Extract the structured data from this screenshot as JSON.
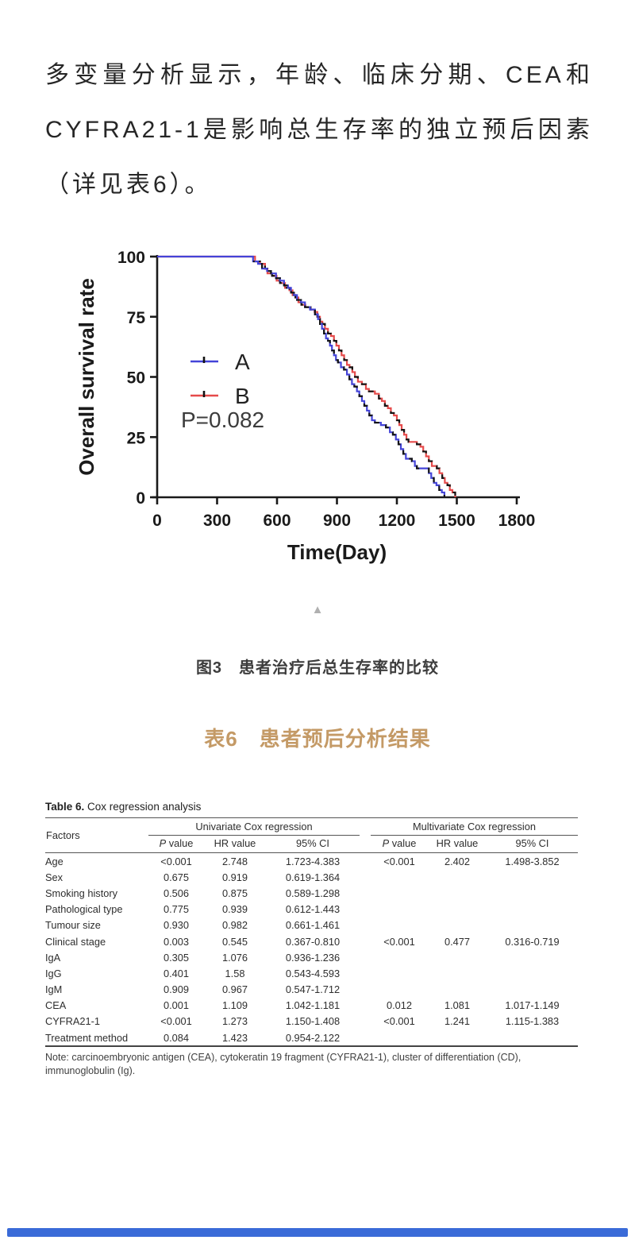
{
  "paragraph": {
    "text": "多变量分析显示，年龄、临床分期、CEA和CYFRA21-1是影响总生存率的独立预后因素（详见表6）。"
  },
  "chart_data": {
    "type": "line",
    "subtype": "kaplan-meier-step",
    "title": "",
    "xlabel": "Time(Day)",
    "ylabel": "Overall survival rate",
    "xlim": [
      0,
      1800
    ],
    "ylim": [
      0,
      100
    ],
    "x_ticks": [
      0,
      300,
      600,
      900,
      1200,
      1500,
      1800
    ],
    "y_ticks": [
      0,
      25,
      50,
      75,
      100
    ],
    "grid": "off",
    "legend_position": "inside-left",
    "annotation": "P=0.082",
    "legend": [
      {
        "label": "A",
        "color": "#4444d8"
      },
      {
        "label": "B",
        "color": "#e64b4b"
      }
    ],
    "series": [
      {
        "name": "B",
        "color": "#e64b4b",
        "points": [
          [
            0,
            100
          ],
          [
            490,
            98
          ],
          [
            515,
            97
          ],
          [
            540,
            95
          ],
          [
            552,
            93
          ],
          [
            575,
            92
          ],
          [
            598,
            90
          ],
          [
            615,
            89
          ],
          [
            640,
            87
          ],
          [
            662,
            86
          ],
          [
            678,
            84
          ],
          [
            692,
            83
          ],
          [
            707,
            81
          ],
          [
            722,
            80
          ],
          [
            742,
            79
          ],
          [
            768,
            78
          ],
          [
            788,
            77
          ],
          [
            802,
            75
          ],
          [
            815,
            73
          ],
          [
            827,
            72
          ],
          [
            840,
            70
          ],
          [
            855,
            68
          ],
          [
            870,
            67
          ],
          [
            885,
            65
          ],
          [
            897,
            63
          ],
          [
            910,
            61
          ],
          [
            923,
            59
          ],
          [
            936,
            57
          ],
          [
            950,
            55
          ],
          [
            963,
            54
          ],
          [
            977,
            52
          ],
          [
            990,
            50
          ],
          [
            1005,
            48
          ],
          [
            1025,
            47
          ],
          [
            1045,
            45
          ],
          [
            1060,
            44
          ],
          [
            1090,
            43
          ],
          [
            1110,
            41
          ],
          [
            1125,
            40
          ],
          [
            1140,
            38
          ],
          [
            1155,
            37
          ],
          [
            1170,
            35
          ],
          [
            1185,
            34
          ],
          [
            1200,
            32
          ],
          [
            1212,
            30
          ],
          [
            1224,
            28
          ],
          [
            1236,
            26
          ],
          [
            1248,
            24
          ],
          [
            1258,
            23
          ],
          [
            1300,
            22
          ],
          [
            1318,
            21
          ],
          [
            1332,
            19
          ],
          [
            1346,
            17
          ],
          [
            1360,
            15
          ],
          [
            1375,
            13
          ],
          [
            1400,
            12
          ],
          [
            1413,
            10
          ],
          [
            1427,
            8
          ],
          [
            1440,
            6
          ],
          [
            1453,
            5
          ],
          [
            1465,
            3
          ],
          [
            1478,
            2
          ],
          [
            1492,
            0
          ]
        ]
      },
      {
        "name": "A",
        "color": "#4444d8",
        "points": [
          [
            0,
            100
          ],
          [
            480,
            98
          ],
          [
            505,
            97
          ],
          [
            525,
            95
          ],
          [
            550,
            94
          ],
          [
            570,
            93
          ],
          [
            595,
            91
          ],
          [
            615,
            90
          ],
          [
            635,
            88
          ],
          [
            655,
            87
          ],
          [
            670,
            85
          ],
          [
            685,
            84
          ],
          [
            700,
            82
          ],
          [
            720,
            81
          ],
          [
            740,
            79
          ],
          [
            765,
            78
          ],
          [
            790,
            76
          ],
          [
            805,
            74
          ],
          [
            815,
            72
          ],
          [
            825,
            70
          ],
          [
            835,
            68
          ],
          [
            845,
            66
          ],
          [
            855,
            65
          ],
          [
            865,
            63
          ],
          [
            875,
            61
          ],
          [
            885,
            59
          ],
          [
            895,
            57
          ],
          [
            905,
            56
          ],
          [
            920,
            54
          ],
          [
            935,
            53
          ],
          [
            950,
            51
          ],
          [
            962,
            49
          ],
          [
            975,
            47
          ],
          [
            987,
            46
          ],
          [
            1000,
            44
          ],
          [
            1012,
            42
          ],
          [
            1025,
            40
          ],
          [
            1037,
            38
          ],
          [
            1050,
            36
          ],
          [
            1062,
            34
          ],
          [
            1075,
            32
          ],
          [
            1090,
            31
          ],
          [
            1120,
            30
          ],
          [
            1145,
            29
          ],
          [
            1165,
            27
          ],
          [
            1180,
            26
          ],
          [
            1195,
            24
          ],
          [
            1208,
            22
          ],
          [
            1220,
            20
          ],
          [
            1232,
            18
          ],
          [
            1245,
            16
          ],
          [
            1275,
            15
          ],
          [
            1290,
            13
          ],
          [
            1300,
            12
          ],
          [
            1345,
            12
          ],
          [
            1360,
            10
          ],
          [
            1372,
            8
          ],
          [
            1385,
            6
          ],
          [
            1398,
            5
          ],
          [
            1412,
            3
          ],
          [
            1425,
            2
          ],
          [
            1438,
            0
          ]
        ]
      }
    ]
  },
  "figure": {
    "collapse_marker": "▲",
    "caption": "图3　患者治疗后总生存率的比较"
  },
  "table_section": {
    "title_cn": "表6　患者预后分析结果",
    "caption_bold": "Table 6.",
    "caption_rest": " Cox regression analysis",
    "col_factors": "Factors",
    "group1": "Univariate Cox regression",
    "group2": "Multivariate Cox regression",
    "sub_p_italic": "P",
    "sub_p_rest": " value",
    "sub_hr": "HR value",
    "sub_ci": "95% CI",
    "rows": [
      {
        "factor": "Age",
        "u_p": "<0.001",
        "u_hr": "2.748",
        "u_ci": "1.723-4.383",
        "m_p": "<0.001",
        "m_hr": "2.402",
        "m_ci": "1.498-3.852"
      },
      {
        "factor": "Sex",
        "u_p": "0.675",
        "u_hr": "0.919",
        "u_ci": "0.619-1.364",
        "m_p": "",
        "m_hr": "",
        "m_ci": ""
      },
      {
        "factor": "Smoking history",
        "u_p": "0.506",
        "u_hr": "0.875",
        "u_ci": "0.589-1.298",
        "m_p": "",
        "m_hr": "",
        "m_ci": ""
      },
      {
        "factor": "Pathological type",
        "u_p": "0.775",
        "u_hr": "0.939",
        "u_ci": "0.612-1.443",
        "m_p": "",
        "m_hr": "",
        "m_ci": ""
      },
      {
        "factor": "Tumour size",
        "u_p": "0.930",
        "u_hr": "0.982",
        "u_ci": "0.661-1.461",
        "m_p": "",
        "m_hr": "",
        "m_ci": ""
      },
      {
        "factor": "Clinical stage",
        "u_p": "0.003",
        "u_hr": "0.545",
        "u_ci": "0.367-0.810",
        "m_p": "<0.001",
        "m_hr": "0.477",
        "m_ci": "0.316-0.719"
      },
      {
        "factor": "IgA",
        "u_p": "0.305",
        "u_hr": "1.076",
        "u_ci": "0.936-1.236",
        "m_p": "",
        "m_hr": "",
        "m_ci": ""
      },
      {
        "factor": "IgG",
        "u_p": "0.401",
        "u_hr": "1.58",
        "u_ci": "0.543-4.593",
        "m_p": "",
        "m_hr": "",
        "m_ci": ""
      },
      {
        "factor": "IgM",
        "u_p": "0.909",
        "u_hr": "0.967",
        "u_ci": "0.547-1.712",
        "m_p": "",
        "m_hr": "",
        "m_ci": ""
      },
      {
        "factor": "CEA",
        "u_p": "0.001",
        "u_hr": "1.109",
        "u_ci": "1.042-1.181",
        "m_p": "0.012",
        "m_hr": "1.081",
        "m_ci": "1.017-1.149"
      },
      {
        "factor": "CYFRA21-1",
        "u_p": "<0.001",
        "u_hr": "1.273",
        "u_ci": "1.150-1.408",
        "m_p": "<0.001",
        "m_hr": "1.241",
        "m_ci": "1.115-1.383"
      },
      {
        "factor": "Treatment method",
        "u_p": "0.084",
        "u_hr": "1.423",
        "u_ci": "0.954-2.122",
        "m_p": "",
        "m_hr": "",
        "m_ci": ""
      }
    ],
    "note": "Note: carcinoembryonic antigen (CEA), cytokeratin 19 fragment (CYFRA21-1), cluster of differentiation (CD), immunoglobulin (Ig)."
  },
  "footer": {
    "bar_color": "#3a6bd8"
  }
}
